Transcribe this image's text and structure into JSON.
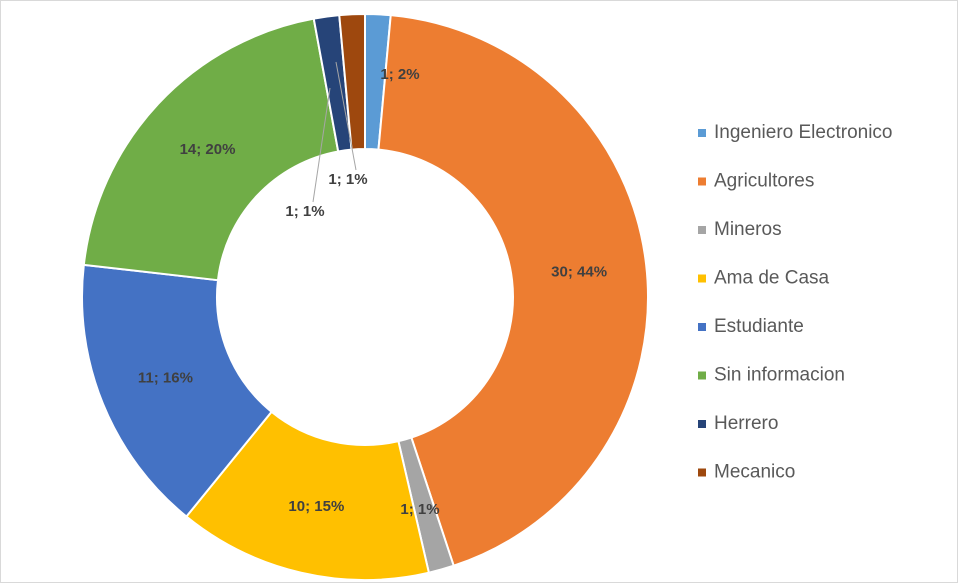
{
  "chart_data": {
    "type": "donut",
    "categories": [
      "Ingeniero Electronico",
      "Agricultores",
      "Mineros",
      "Ama de Casa",
      "Estudiante",
      "Sin informacion",
      "Herrero",
      "Mecanico"
    ],
    "values": [
      1,
      30,
      1,
      10,
      11,
      14,
      1,
      1
    ],
    "value_labels": [
      "1; 2%",
      "30; 44%",
      "1; 1%",
      "10; 15%",
      "11; 16%",
      "14; 20%",
      "1; 1%",
      "1; 1%"
    ],
    "colors": [
      "#5b9bd5",
      "#ed7d31",
      "#a5a5a5",
      "#ffc000",
      "#4472c4",
      "#70ad47",
      "#264478",
      "#9e480e"
    ],
    "legend": "right"
  }
}
